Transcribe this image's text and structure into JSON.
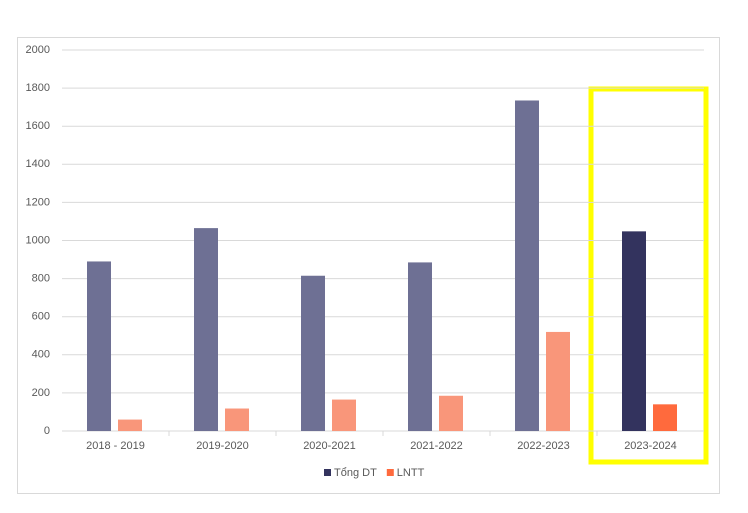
{
  "chart_data": {
    "type": "bar",
    "categories": [
      "2018 - 2019",
      "2019-2020",
      "2020-2021",
      "2021-2022",
      "2022-2023",
      "2023-2024"
    ],
    "series": [
      {
        "name": "Tổng DT",
        "color": "#33335e",
        "colors": [
          "#6e7094",
          "#6e7094",
          "#6e7094",
          "#6e7094",
          "#6e7094",
          "#33335e"
        ],
        "values": [
          890,
          1065,
          815,
          885,
          1735,
          1048
        ]
      },
      {
        "name": "LNTT",
        "color": "#ff6a3d",
        "colors": [
          "#f9967a",
          "#f9967a",
          "#f9967a",
          "#f9967a",
          "#f9967a",
          "#ff6a3d"
        ],
        "values": [
          60,
          118,
          165,
          185,
          520,
          140
        ]
      }
    ],
    "ylim": [
      0,
      2000
    ],
    "yticks": [
      0,
      200,
      400,
      600,
      800,
      1000,
      1200,
      1400,
      1600,
      1800,
      2000
    ],
    "grid": true,
    "legend": "bottom"
  }
}
